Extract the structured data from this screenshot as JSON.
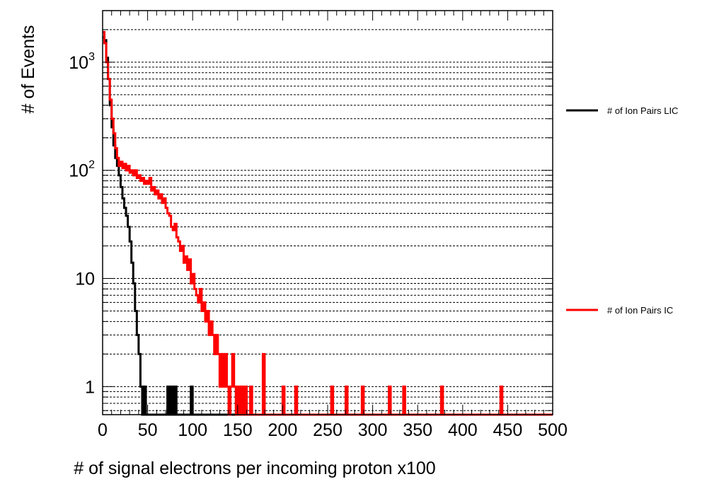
{
  "chart_data": {
    "type": "line",
    "title": "",
    "xlabel": "# of signal electrons per incoming proton x100",
    "ylabel": "# of Events",
    "xlim": [
      0,
      500
    ],
    "ylim": [
      0.55,
      3000
    ],
    "y_scale": "log",
    "grid": "horizontal dashed",
    "legend_position": "right",
    "x_ticks": [
      "0",
      "50",
      "100",
      "150",
      "200",
      "250",
      "300",
      "350",
      "400",
      "450",
      "500"
    ],
    "y_ticks": [
      {
        "value": 1,
        "base": "1",
        "exp": ""
      },
      {
        "value": 10,
        "base": "10",
        "exp": ""
      },
      {
        "value": 100,
        "base": "10",
        "exp": "2"
      },
      {
        "value": 1000,
        "base": "10",
        "exp": "3"
      }
    ],
    "bin_width": 2,
    "series": [
      {
        "name": "# of Ion Pairs LIC",
        "color": "#000000",
        "step_points": [
          [
            0,
            1700
          ],
          [
            2,
            1600
          ],
          [
            4,
            1100
          ],
          [
            6,
            700
          ],
          [
            8,
            400
          ],
          [
            10,
            250
          ],
          [
            12,
            170
          ],
          [
            14,
            130
          ],
          [
            16,
            110
          ],
          [
            18,
            90
          ],
          [
            20,
            70
          ],
          [
            22,
            55
          ],
          [
            24,
            45
          ],
          [
            26,
            38
          ],
          [
            28,
            30
          ],
          [
            30,
            22
          ],
          [
            32,
            14
          ],
          [
            34,
            9
          ],
          [
            36,
            5
          ],
          [
            38,
            3
          ],
          [
            40,
            2
          ],
          [
            42,
            1
          ],
          [
            44,
            0.5
          ],
          [
            46,
            1
          ],
          [
            48,
            0.5
          ],
          [
            72,
            1
          ],
          [
            74,
            0.5
          ],
          [
            76,
            1
          ],
          [
            78,
            0.5
          ],
          [
            80,
            1
          ],
          [
            82,
            0.5
          ],
          [
            98,
            1
          ],
          [
            100,
            0.5
          ]
        ]
      },
      {
        "name": "# of Ion Pairs IC",
        "color": "#ff0000",
        "step_points": [
          [
            0,
            1900
          ],
          [
            2,
            1500
          ],
          [
            4,
            1000
          ],
          [
            6,
            700
          ],
          [
            8,
            450
          ],
          [
            10,
            300
          ],
          [
            12,
            220
          ],
          [
            14,
            160
          ],
          [
            16,
            130
          ],
          [
            18,
            110
          ],
          [
            20,
            120
          ],
          [
            22,
            105
          ],
          [
            24,
            115
          ],
          [
            26,
            100
          ],
          [
            28,
            110
          ],
          [
            30,
            95
          ],
          [
            32,
            100
          ],
          [
            34,
            90
          ],
          [
            36,
            100
          ],
          [
            38,
            85
          ],
          [
            40,
            90
          ],
          [
            42,
            80
          ],
          [
            44,
            85
          ],
          [
            46,
            75
          ],
          [
            48,
            80
          ],
          [
            50,
            75
          ],
          [
            52,
            85
          ],
          [
            54,
            65
          ],
          [
            56,
            70
          ],
          [
            58,
            60
          ],
          [
            60,
            65
          ],
          [
            62,
            55
          ],
          [
            64,
            60
          ],
          [
            66,
            50
          ],
          [
            68,
            55
          ],
          [
            70,
            45
          ],
          [
            72,
            40
          ],
          [
            74,
            38
          ],
          [
            76,
            30
          ],
          [
            78,
            28
          ],
          [
            80,
            32
          ],
          [
            82,
            24
          ],
          [
            84,
            22
          ],
          [
            86,
            18
          ],
          [
            88,
            20
          ],
          [
            90,
            14
          ],
          [
            92,
            16
          ],
          [
            94,
            12
          ],
          [
            96,
            15
          ],
          [
            98,
            9
          ],
          [
            100,
            11
          ],
          [
            102,
            8
          ],
          [
            104,
            7
          ],
          [
            106,
            6
          ],
          [
            108,
            8
          ],
          [
            110,
            5
          ],
          [
            112,
            6
          ],
          [
            114,
            4
          ],
          [
            116,
            5
          ],
          [
            118,
            3
          ],
          [
            120,
            4
          ],
          [
            122,
            3
          ],
          [
            124,
            2
          ],
          [
            126,
            3
          ],
          [
            128,
            2
          ],
          [
            130,
            1
          ],
          [
            132,
            2
          ],
          [
            134,
            1
          ],
          [
            136,
            2
          ],
          [
            138,
            1
          ],
          [
            140,
            0.5
          ],
          [
            142,
            1
          ],
          [
            144,
            2
          ],
          [
            146,
            1
          ],
          [
            148,
            0.5
          ],
          [
            150,
            1
          ],
          [
            152,
            0.5
          ],
          [
            154,
            1
          ],
          [
            156,
            0.5
          ],
          [
            158,
            1
          ],
          [
            160,
            0.5
          ],
          [
            164,
            1
          ],
          [
            166,
            0.5
          ],
          [
            178,
            2
          ],
          [
            180,
            0.5
          ],
          [
            200,
            1
          ],
          [
            202,
            0.5
          ],
          [
            214,
            1
          ],
          [
            216,
            0.5
          ],
          [
            254,
            1
          ],
          [
            256,
            0.5
          ],
          [
            270,
            1
          ],
          [
            272,
            0.5
          ],
          [
            288,
            1
          ],
          [
            290,
            0.5
          ],
          [
            318,
            1
          ],
          [
            320,
            0.5
          ],
          [
            334,
            1
          ],
          [
            336,
            0.5
          ],
          [
            376,
            1
          ],
          [
            378,
            0.5
          ],
          [
            442,
            1
          ],
          [
            444,
            0.5
          ],
          [
            500,
            0.5
          ]
        ]
      }
    ]
  }
}
